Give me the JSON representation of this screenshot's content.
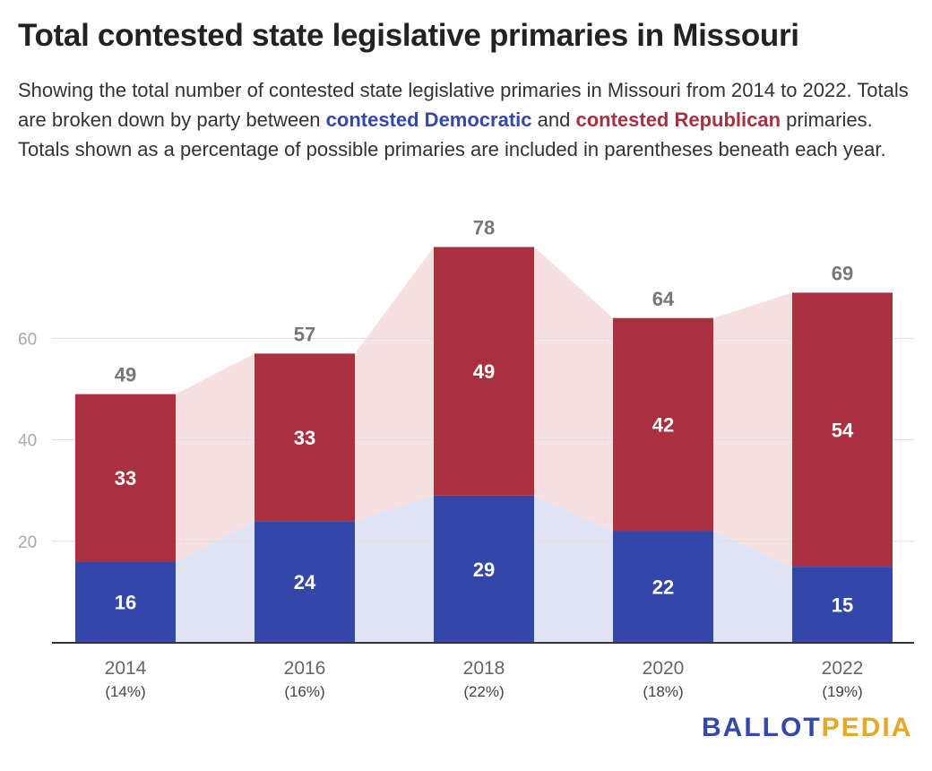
{
  "title": "Total contested state legislative primaries in Missouri",
  "subtitle": {
    "part1": "Showing the total number of contested state legislative primaries in Missouri from 2014 to 2022. Totals are broken down by party between ",
    "dem": "contested Democratic",
    "and": " and ",
    "rep": "contested Republican",
    "part2": " primaries. Totals shown as a percentage of possible primaries are included in parentheses beneath each year."
  },
  "chart_data": {
    "type": "bar",
    "stacked": true,
    "categories": [
      "2014",
      "2016",
      "2018",
      "2020",
      "2022"
    ],
    "category_sublabels": [
      "(14%)",
      "(16%)",
      "(22%)",
      "(18%)",
      "(19%)"
    ],
    "series": [
      {
        "name": "contested Democratic",
        "values": [
          16,
          24,
          29,
          22,
          15
        ],
        "color": "#3347a8",
        "area_color": "#e0e3f3"
      },
      {
        "name": "contested Republican",
        "values": [
          33,
          33,
          49,
          42,
          54
        ],
        "color": "#a8303f",
        "area_color": "#f6e0e2"
      }
    ],
    "totals": [
      49,
      57,
      78,
      64,
      69
    ],
    "yticks": [
      20,
      40,
      60
    ],
    "ylim": [
      0,
      80
    ],
    "grid": true,
    "xlabel": "",
    "ylabel": ""
  },
  "logo": {
    "part1": "BALLOT",
    "part2": "PEDIA",
    "color1": "#3348a8",
    "color2": "#e6a829"
  }
}
